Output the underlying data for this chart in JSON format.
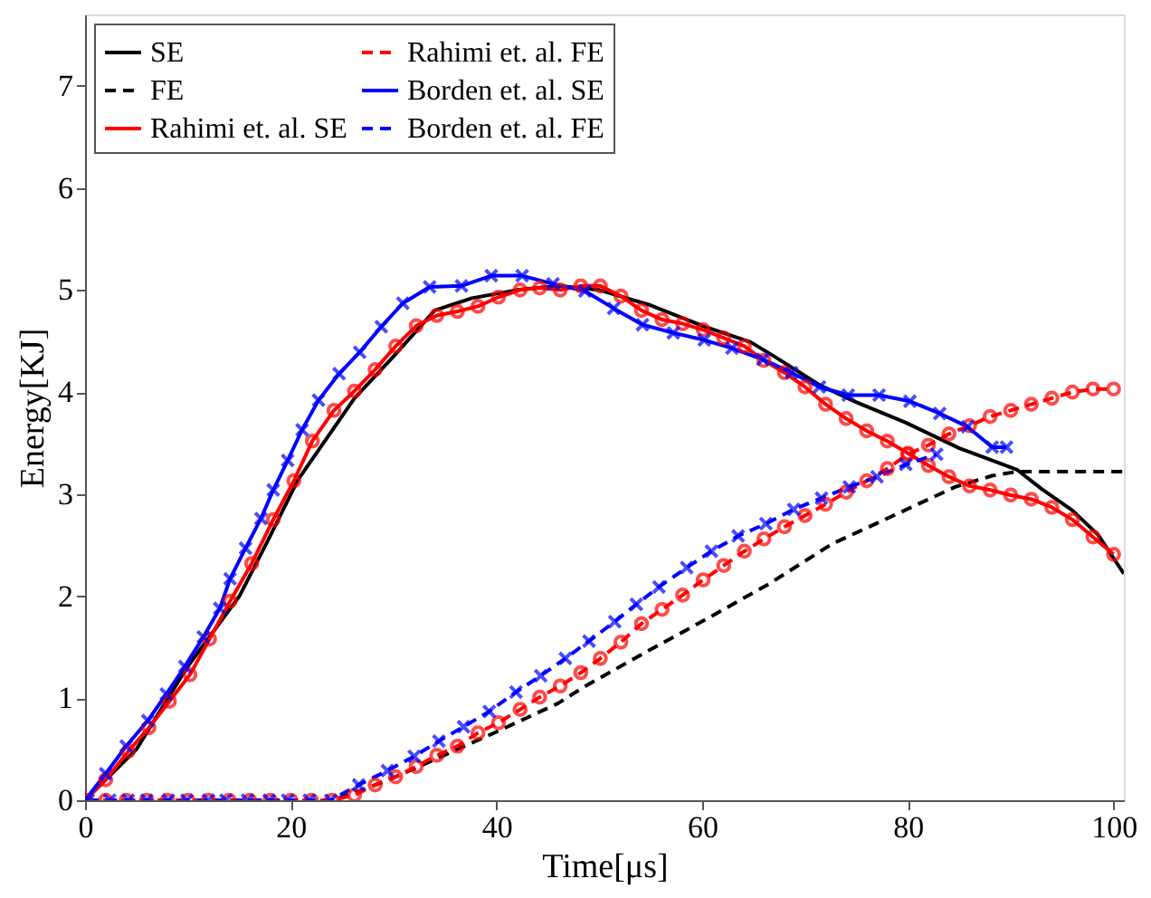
{
  "chart_data": {
    "type": "line",
    "xlabel": "Time[μs]",
    "ylabel": "Energy[KJ]",
    "xlim": [
      0,
      101
    ],
    "ylim": [
      0,
      7.7
    ],
    "xticks": [
      0,
      20,
      40,
      60,
      80,
      100
    ],
    "yticks": [
      0,
      1,
      2,
      3,
      4,
      5,
      6,
      7
    ],
    "grid": false,
    "legend": "top left",
    "series": [
      {
        "name": "SE",
        "color": "#000000",
        "line_style": "solid",
        "marker": "none",
        "x": [
          0,
          5,
          9.9,
          15,
          17.7,
          20.7,
          26.2,
          30,
          34,
          37.6,
          42,
          46,
          50,
          55,
          60,
          64.7,
          67,
          71.4,
          75,
          79.8,
          85,
          90.6,
          93,
          96,
          98.5,
          101
        ],
        "values": [
          0,
          0.5,
          1.3,
          2.0,
          2.53,
          3.14,
          3.94,
          4.35,
          4.8,
          4.92,
          5.0,
          5.04,
          5.0,
          4.85,
          4.65,
          4.49,
          4.35,
          4.07,
          3.9,
          3.7,
          3.45,
          3.24,
          3.05,
          2.84,
          2.6,
          2.22
        ]
      },
      {
        "name": "FE",
        "color": "#000000",
        "line_style": "dashed",
        "marker": "none",
        "x": [
          0,
          10,
          20,
          24,
          26.2,
          30,
          34,
          40,
          46,
          48.5,
          54.5,
          60.5,
          66.5,
          72.6,
          78.6,
          84.6,
          88.2,
          90.6,
          101
        ],
        "values": [
          0,
          0,
          0,
          0,
          0.07,
          0.22,
          0.4,
          0.67,
          0.95,
          1.11,
          1.45,
          1.78,
          2.12,
          2.51,
          2.79,
          3.07,
          3.18,
          3.22,
          3.22
        ]
      },
      {
        "name": "Rahimi et. al. SE",
        "color": "#ff0000",
        "line_style": "solid",
        "marker": "circle",
        "x": [
          0,
          2,
          4.2,
          6.2,
          8.2,
          10.2,
          12.1,
          14.1,
          16.2,
          18.3,
          20.3,
          22.1,
          24.2,
          26.2,
          28.2,
          30.2,
          32.2,
          34.2,
          36.2,
          38.2,
          40.2,
          42.3,
          44.2,
          46.2,
          48.2,
          50.1,
          52.1,
          54.1,
          56.1,
          58.1,
          60.1,
          62.1,
          64.1,
          66,
          68,
          70,
          72,
          74,
          76,
          78,
          80,
          82,
          84,
          86,
          88,
          90,
          92,
          94,
          96,
          98,
          100
        ],
        "values": [
          0,
          0.2,
          0.48,
          0.71,
          0.97,
          1.23,
          1.58,
          1.95,
          2.32,
          2.75,
          3.13,
          3.52,
          3.82,
          4.01,
          4.22,
          4.45,
          4.65,
          4.75,
          4.79,
          4.84,
          4.93,
          5.0,
          5.02,
          5.0,
          5.04,
          5.04,
          4.94,
          4.8,
          4.71,
          4.67,
          4.61,
          4.53,
          4.45,
          4.31,
          4.19,
          4.05,
          3.88,
          3.74,
          3.62,
          3.52,
          3.4,
          3.28,
          3.17,
          3.08,
          3.04,
          2.99,
          2.95,
          2.87,
          2.75,
          2.58,
          2.41
        ]
      },
      {
        "name": "Rahimi et. al. FE",
        "color": "#ff0000",
        "line_style": "dashed",
        "marker": "circle",
        "x": [
          0,
          2,
          4,
          6,
          8,
          10,
          12,
          14,
          16,
          18,
          20,
          22,
          24,
          26.2,
          28.2,
          30.2,
          32.2,
          34.2,
          36.2,
          38.2,
          40.2,
          42.3,
          44.2,
          46.2,
          48.2,
          50.1,
          52.1,
          54.1,
          56.1,
          58.1,
          60.1,
          62.1,
          64.1,
          66,
          68,
          70,
          72,
          74,
          76,
          78,
          80,
          82,
          84,
          86,
          88,
          90,
          92,
          94,
          96,
          98,
          100
        ],
        "values": [
          0,
          0,
          0,
          0,
          0,
          0,
          0,
          0,
          0,
          0,
          0,
          0,
          0,
          0.05,
          0.15,
          0.23,
          0.33,
          0.44,
          0.53,
          0.66,
          0.76,
          0.89,
          1.01,
          1.12,
          1.25,
          1.39,
          1.55,
          1.73,
          1.87,
          2.01,
          2.16,
          2.3,
          2.44,
          2.56,
          2.68,
          2.79,
          2.9,
          3.02,
          3.13,
          3.25,
          3.39,
          3.48,
          3.59,
          3.67,
          3.76,
          3.82,
          3.88,
          3.94,
          4.0,
          4.03,
          4.03
        ]
      },
      {
        "name": "Borden et. al. SE",
        "color": "#0000ff",
        "line_style": "solid",
        "marker": "cross",
        "x": [
          0,
          2,
          4,
          6.1,
          7.9,
          9.7,
          11.5,
          13.1,
          14.1,
          15.6,
          17.1,
          18.3,
          19.7,
          21.1,
          22.7,
          24.7,
          26.7,
          28.8,
          30.9,
          33.5,
          36.6,
          39.5,
          42.5,
          45.5,
          48.6,
          51.4,
          54.2,
          57.2,
          60.2,
          62.9,
          65.9,
          68.7,
          71.4,
          74.2,
          77.2,
          80.2,
          83.1,
          85.8,
          88.2,
          89.6
        ],
        "values": [
          0,
          0.26,
          0.53,
          0.78,
          1.04,
          1.31,
          1.6,
          1.88,
          2.17,
          2.47,
          2.76,
          3.04,
          3.33,
          3.63,
          3.92,
          4.18,
          4.39,
          4.64,
          4.87,
          5.03,
          5.04,
          5.14,
          5.14,
          5.06,
          4.99,
          4.82,
          4.66,
          4.58,
          4.51,
          4.43,
          4.32,
          4.19,
          4.05,
          3.97,
          3.97,
          3.91,
          3.79,
          3.66,
          3.46,
          3.46
        ]
      },
      {
        "name": "Borden et. al. FE",
        "color": "#0000ff",
        "line_style": "dashed",
        "marker": "cross",
        "x": [
          0.3,
          2.4,
          4.2,
          6,
          8.1,
          9.9,
          12,
          13.7,
          15.8,
          17.9,
          19.7,
          21.8,
          23.9,
          26.6,
          29.4,
          32,
          34.4,
          36.8,
          39.3,
          41.9,
          44.3,
          46.7,
          49,
          51.5,
          53.6,
          55.8,
          58.5,
          60.9,
          63.5,
          66.2,
          68.9,
          71.6,
          74.3,
          77,
          79.8,
          82.8
        ],
        "values": [
          0,
          0,
          0,
          0,
          0,
          0,
          0,
          0,
          0,
          0,
          0,
          0,
          0,
          0.15,
          0.29,
          0.43,
          0.58,
          0.72,
          0.87,
          1.06,
          1.22,
          1.39,
          1.56,
          1.75,
          1.92,
          2.09,
          2.28,
          2.44,
          2.59,
          2.71,
          2.85,
          2.96,
          3.07,
          3.17,
          3.29,
          3.39
        ]
      }
    ]
  }
}
